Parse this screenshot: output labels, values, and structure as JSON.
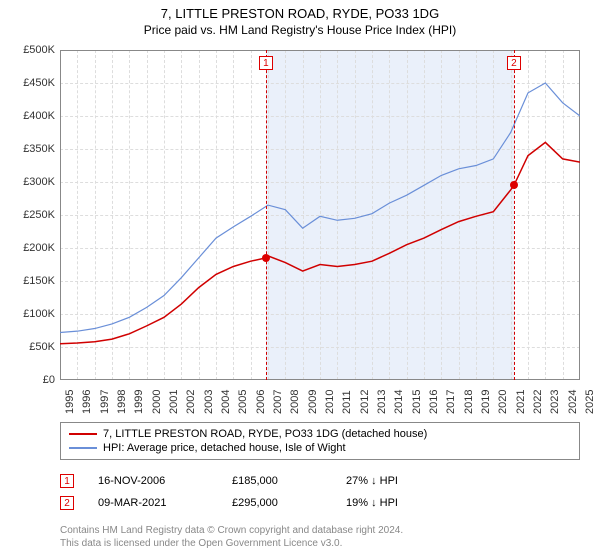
{
  "title": "7, LITTLE PRESTON ROAD, RYDE, PO33 1DG",
  "subtitle": "Price paid vs. HM Land Registry's House Price Index (HPI)",
  "chart": {
    "type": "line",
    "background_color": "#ffffff",
    "grid_color": "#dddddd",
    "border_color": "#888888",
    "yaxis": {
      "min": 0,
      "max": 500000,
      "step": 50000,
      "labels": [
        "£0",
        "£50K",
        "£100K",
        "£150K",
        "£200K",
        "£250K",
        "£300K",
        "£350K",
        "£400K",
        "£450K",
        "£500K"
      ]
    },
    "xaxis": {
      "min": 1995,
      "max": 2025,
      "step": 1,
      "labels": [
        "1995",
        "1996",
        "1997",
        "1998",
        "1999",
        "2000",
        "2001",
        "2002",
        "2003",
        "2004",
        "2005",
        "2006",
        "2007",
        "2008",
        "2009",
        "2010",
        "2011",
        "2012",
        "2013",
        "2014",
        "2015",
        "2016",
        "2017",
        "2018",
        "2019",
        "2020",
        "2021",
        "2022",
        "2023",
        "2024",
        "2025"
      ]
    },
    "shaded_region": {
      "start": 2006.88,
      "end": 2021.19,
      "color": "#eaf0fa"
    },
    "marker_lines": [
      {
        "x": 2006.88,
        "label": "1",
        "color": "#d00000"
      },
      {
        "x": 2021.19,
        "label": "2",
        "color": "#d00000"
      }
    ],
    "series": [
      {
        "name": "property",
        "color": "#d00000",
        "line_width": 1.5,
        "points": [
          [
            1995,
            55000
          ],
          [
            1996,
            56000
          ],
          [
            1997,
            58000
          ],
          [
            1998,
            62000
          ],
          [
            1999,
            70000
          ],
          [
            2000,
            82000
          ],
          [
            2001,
            95000
          ],
          [
            2002,
            115000
          ],
          [
            2003,
            140000
          ],
          [
            2004,
            160000
          ],
          [
            2005,
            172000
          ],
          [
            2006,
            180000
          ],
          [
            2006.88,
            185000
          ],
          [
            2007,
            188000
          ],
          [
            2008,
            178000
          ],
          [
            2009,
            165000
          ],
          [
            2010,
            175000
          ],
          [
            2011,
            172000
          ],
          [
            2012,
            175000
          ],
          [
            2013,
            180000
          ],
          [
            2014,
            192000
          ],
          [
            2015,
            205000
          ],
          [
            2016,
            215000
          ],
          [
            2017,
            228000
          ],
          [
            2018,
            240000
          ],
          [
            2019,
            248000
          ],
          [
            2020,
            255000
          ],
          [
            2021,
            288000
          ],
          [
            2021.19,
            295000
          ],
          [
            2022,
            340000
          ],
          [
            2023,
            360000
          ],
          [
            2024,
            335000
          ],
          [
            2025,
            330000
          ]
        ],
        "markers": [
          {
            "x": 2006.88,
            "y": 185000
          },
          {
            "x": 2021.19,
            "y": 295000
          }
        ]
      },
      {
        "name": "hpi",
        "color": "#6a8fd8",
        "line_width": 1.2,
        "points": [
          [
            1995,
            72000
          ],
          [
            1996,
            74000
          ],
          [
            1997,
            78000
          ],
          [
            1998,
            85000
          ],
          [
            1999,
            95000
          ],
          [
            2000,
            110000
          ],
          [
            2001,
            128000
          ],
          [
            2002,
            155000
          ],
          [
            2003,
            185000
          ],
          [
            2004,
            215000
          ],
          [
            2005,
            232000
          ],
          [
            2006,
            248000
          ],
          [
            2007,
            265000
          ],
          [
            2008,
            258000
          ],
          [
            2009,
            230000
          ],
          [
            2010,
            248000
          ],
          [
            2011,
            242000
          ],
          [
            2012,
            245000
          ],
          [
            2013,
            252000
          ],
          [
            2014,
            268000
          ],
          [
            2015,
            280000
          ],
          [
            2016,
            295000
          ],
          [
            2017,
            310000
          ],
          [
            2018,
            320000
          ],
          [
            2019,
            325000
          ],
          [
            2020,
            335000
          ],
          [
            2021,
            375000
          ],
          [
            2022,
            435000
          ],
          [
            2023,
            450000
          ],
          [
            2024,
            420000
          ],
          [
            2025,
            400000
          ]
        ]
      }
    ]
  },
  "legend": {
    "items": [
      {
        "color": "#d00000",
        "label": "7, LITTLE PRESTON ROAD, RYDE, PO33 1DG (detached house)"
      },
      {
        "color": "#6a8fd8",
        "label": "HPI: Average price, detached house, Isle of Wight"
      }
    ]
  },
  "events": [
    {
      "marker": "1",
      "date": "16-NOV-2006",
      "price": "£185,000",
      "delta": "27% ↓ HPI"
    },
    {
      "marker": "2",
      "date": "09-MAR-2021",
      "price": "£295,000",
      "delta": "19% ↓ HPI"
    }
  ],
  "footer_line1": "Contains HM Land Registry data © Crown copyright and database right 2024.",
  "footer_line2": "This data is licensed under the Open Government Licence v3.0."
}
